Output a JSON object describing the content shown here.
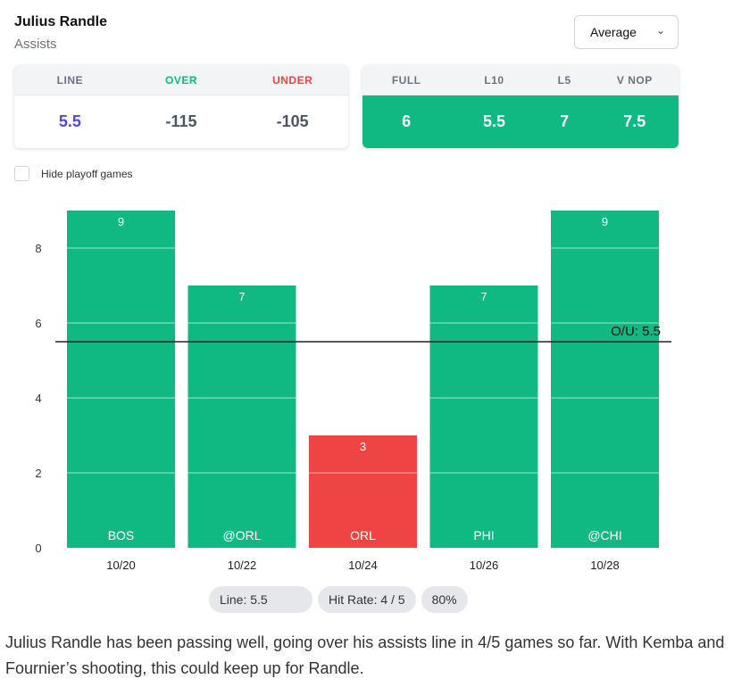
{
  "header": {
    "player": "Julius Randle",
    "stat": "Assists",
    "select_value": "Average"
  },
  "odds": {
    "headers": [
      "LINE",
      "OVER",
      "UNDER"
    ],
    "values": [
      "5.5",
      "-115",
      "-105"
    ]
  },
  "averages": {
    "headers": [
      "FULL",
      "L10",
      "L5",
      "V NOP"
    ],
    "values": [
      "6",
      "5.5",
      "7",
      "7.5"
    ]
  },
  "filter": {
    "hide_playoff_label": "Hide playoff games",
    "checked": false
  },
  "colors": {
    "over": "#10b981",
    "under": "#ef4444",
    "line": "#4f46e5"
  },
  "chart_data": {
    "type": "bar",
    "categories": [
      "10/20",
      "10/22",
      "10/24",
      "10/26",
      "10/28"
    ],
    "opponents": [
      "BOS",
      "@ORL",
      "ORL",
      "PHI",
      "@CHI"
    ],
    "values": [
      9,
      7,
      3,
      7,
      9
    ],
    "ylim": [
      0,
      9
    ],
    "yticks": [
      0,
      2,
      4,
      6,
      8
    ],
    "reference_line": {
      "value": 5.5,
      "label": "O/U: 5.5"
    },
    "grid": true
  },
  "summary": {
    "line": "Line: 5.5",
    "hit_rate": "Hit Rate: 4 / 5",
    "pct": "80%"
  },
  "description": "Julius Randle has been passing well, going over his assists line in 4/5 games so far. With Kemba and Fournier’s shooting, this could keep up for Randle."
}
